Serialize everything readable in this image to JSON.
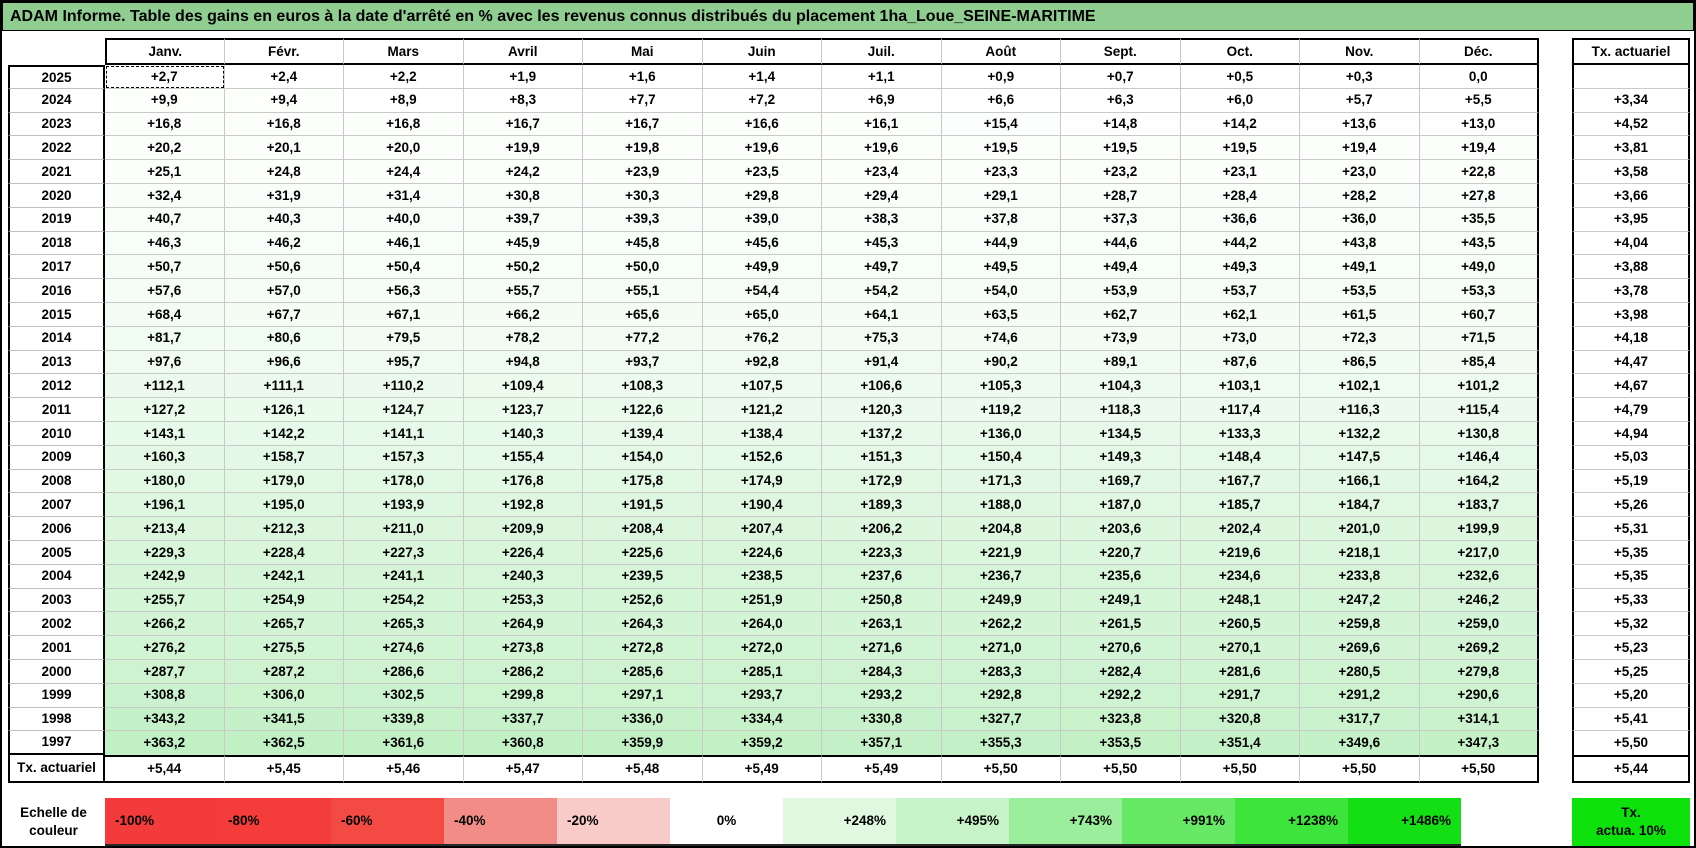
{
  "title": "ADAM Informe. Table des gains en euros à la date d'arrêté en % avec les revenus connus distribués du placement 1ha_Loue_SEINE-MARITIME",
  "table": {
    "month_headers": [
      "Janv.",
      "Févr.",
      "Mars",
      "Avril",
      "Mai",
      "Juin",
      "Juil.",
      "Août",
      "Sept.",
      "Oct.",
      "Nov.",
      "Déc."
    ],
    "right_header": "Tx. actuariel",
    "rows": [
      {
        "year": "2025",
        "values": [
          "+2,7",
          "+2,4",
          "+2,2",
          "+1,9",
          "+1,6",
          "+1,4",
          "+1,1",
          "+0,9",
          "+0,7",
          "+0,5",
          "+0,3",
          "0,0"
        ],
        "tx": ""
      },
      {
        "year": "2024",
        "values": [
          "+9,9",
          "+9,4",
          "+8,9",
          "+8,3",
          "+7,7",
          "+7,2",
          "+6,9",
          "+6,6",
          "+6,3",
          "+6,0",
          "+5,7",
          "+5,5"
        ],
        "tx": "+3,34"
      },
      {
        "year": "2023",
        "values": [
          "+16,8",
          "+16,8",
          "+16,8",
          "+16,7",
          "+16,7",
          "+16,6",
          "+16,1",
          "+15,4",
          "+14,8",
          "+14,2",
          "+13,6",
          "+13,0"
        ],
        "tx": "+4,52"
      },
      {
        "year": "2022",
        "values": [
          "+20,2",
          "+20,1",
          "+20,0",
          "+19,9",
          "+19,8",
          "+19,6",
          "+19,6",
          "+19,5",
          "+19,5",
          "+19,5",
          "+19,4",
          "+19,4"
        ],
        "tx": "+3,81"
      },
      {
        "year": "2021",
        "values": [
          "+25,1",
          "+24,8",
          "+24,4",
          "+24,2",
          "+23,9",
          "+23,5",
          "+23,4",
          "+23,3",
          "+23,2",
          "+23,1",
          "+23,0",
          "+22,8"
        ],
        "tx": "+3,58"
      },
      {
        "year": "2020",
        "values": [
          "+32,4",
          "+31,9",
          "+31,4",
          "+30,8",
          "+30,3",
          "+29,8",
          "+29,4",
          "+29,1",
          "+28,7",
          "+28,4",
          "+28,2",
          "+27,8"
        ],
        "tx": "+3,66"
      },
      {
        "year": "2019",
        "values": [
          "+40,7",
          "+40,3",
          "+40,0",
          "+39,7",
          "+39,3",
          "+39,0",
          "+38,3",
          "+37,8",
          "+37,3",
          "+36,6",
          "+36,0",
          "+35,5"
        ],
        "tx": "+3,95"
      },
      {
        "year": "2018",
        "values": [
          "+46,3",
          "+46,2",
          "+46,1",
          "+45,9",
          "+45,8",
          "+45,6",
          "+45,3",
          "+44,9",
          "+44,6",
          "+44,2",
          "+43,8",
          "+43,5"
        ],
        "tx": "+4,04"
      },
      {
        "year": "2017",
        "values": [
          "+50,7",
          "+50,6",
          "+50,4",
          "+50,2",
          "+50,0",
          "+49,9",
          "+49,7",
          "+49,5",
          "+49,4",
          "+49,3",
          "+49,1",
          "+49,0"
        ],
        "tx": "+3,88"
      },
      {
        "year": "2016",
        "values": [
          "+57,6",
          "+57,0",
          "+56,3",
          "+55,7",
          "+55,1",
          "+54,4",
          "+54,2",
          "+54,0",
          "+53,9",
          "+53,7",
          "+53,5",
          "+53,3"
        ],
        "tx": "+3,78"
      },
      {
        "year": "2015",
        "values": [
          "+68,4",
          "+67,7",
          "+67,1",
          "+66,2",
          "+65,6",
          "+65,0",
          "+64,1",
          "+63,5",
          "+62,7",
          "+62,1",
          "+61,5",
          "+60,7"
        ],
        "tx": "+3,98"
      },
      {
        "year": "2014",
        "values": [
          "+81,7",
          "+80,6",
          "+79,5",
          "+78,2",
          "+77,2",
          "+76,2",
          "+75,3",
          "+74,6",
          "+73,9",
          "+73,0",
          "+72,3",
          "+71,5"
        ],
        "tx": "+4,18"
      },
      {
        "year": "2013",
        "values": [
          "+97,6",
          "+96,6",
          "+95,7",
          "+94,8",
          "+93,7",
          "+92,8",
          "+91,4",
          "+90,2",
          "+89,1",
          "+87,6",
          "+86,5",
          "+85,4"
        ],
        "tx": "+4,47"
      },
      {
        "year": "2012",
        "values": [
          "+112,1",
          "+111,1",
          "+110,2",
          "+109,4",
          "+108,3",
          "+107,5",
          "+106,6",
          "+105,3",
          "+104,3",
          "+103,1",
          "+102,1",
          "+101,2"
        ],
        "tx": "+4,67"
      },
      {
        "year": "2011",
        "values": [
          "+127,2",
          "+126,1",
          "+124,7",
          "+123,7",
          "+122,6",
          "+121,2",
          "+120,3",
          "+119,2",
          "+118,3",
          "+117,4",
          "+116,3",
          "+115,4"
        ],
        "tx": "+4,79"
      },
      {
        "year": "2010",
        "values": [
          "+143,1",
          "+142,2",
          "+141,1",
          "+140,3",
          "+139,4",
          "+138,4",
          "+137,2",
          "+136,0",
          "+134,5",
          "+133,3",
          "+132,2",
          "+130,8"
        ],
        "tx": "+4,94"
      },
      {
        "year": "2009",
        "values": [
          "+160,3",
          "+158,7",
          "+157,3",
          "+155,4",
          "+154,0",
          "+152,6",
          "+151,3",
          "+150,4",
          "+149,3",
          "+148,4",
          "+147,5",
          "+146,4"
        ],
        "tx": "+5,03"
      },
      {
        "year": "2008",
        "values": [
          "+180,0",
          "+179,0",
          "+178,0",
          "+176,8",
          "+175,8",
          "+174,9",
          "+172,9",
          "+171,3",
          "+169,7",
          "+167,7",
          "+166,1",
          "+164,2"
        ],
        "tx": "+5,19"
      },
      {
        "year": "2007",
        "values": [
          "+196,1",
          "+195,0",
          "+193,9",
          "+192,8",
          "+191,5",
          "+190,4",
          "+189,3",
          "+188,0",
          "+187,0",
          "+185,7",
          "+184,7",
          "+183,7"
        ],
        "tx": "+5,26"
      },
      {
        "year": "2006",
        "values": [
          "+213,4",
          "+212,3",
          "+211,0",
          "+209,9",
          "+208,4",
          "+207,4",
          "+206,2",
          "+204,8",
          "+203,6",
          "+202,4",
          "+201,0",
          "+199,9"
        ],
        "tx": "+5,31"
      },
      {
        "year": "2005",
        "values": [
          "+229,3",
          "+228,4",
          "+227,3",
          "+226,4",
          "+225,6",
          "+224,6",
          "+223,3",
          "+221,9",
          "+220,7",
          "+219,6",
          "+218,1",
          "+217,0"
        ],
        "tx": "+5,35"
      },
      {
        "year": "2004",
        "values": [
          "+242,9",
          "+242,1",
          "+241,1",
          "+240,3",
          "+239,5",
          "+238,5",
          "+237,6",
          "+236,7",
          "+235,6",
          "+234,6",
          "+233,8",
          "+232,6"
        ],
        "tx": "+5,35"
      },
      {
        "year": "2003",
        "values": [
          "+255,7",
          "+254,9",
          "+254,2",
          "+253,3",
          "+252,6",
          "+251,9",
          "+250,8",
          "+249,9",
          "+249,1",
          "+248,1",
          "+247,2",
          "+246,2"
        ],
        "tx": "+5,33"
      },
      {
        "year": "2002",
        "values": [
          "+266,2",
          "+265,7",
          "+265,3",
          "+264,9",
          "+264,3",
          "+264,0",
          "+263,1",
          "+262,2",
          "+261,5",
          "+260,5",
          "+259,8",
          "+259,0"
        ],
        "tx": "+5,32"
      },
      {
        "year": "2001",
        "values": [
          "+276,2",
          "+275,5",
          "+274,6",
          "+273,8",
          "+272,8",
          "+272,0",
          "+271,6",
          "+271,0",
          "+270,6",
          "+270,1",
          "+269,6",
          "+269,2"
        ],
        "tx": "+5,23"
      },
      {
        "year": "2000",
        "values": [
          "+287,7",
          "+287,2",
          "+286,6",
          "+286,2",
          "+285,6",
          "+285,1",
          "+284,3",
          "+283,3",
          "+282,4",
          "+281,6",
          "+280,5",
          "+279,8"
        ],
        "tx": "+5,25"
      },
      {
        "year": "1999",
        "values": [
          "+308,8",
          "+306,0",
          "+302,5",
          "+299,8",
          "+297,1",
          "+293,7",
          "+293,2",
          "+292,8",
          "+292,2",
          "+291,7",
          "+291,2",
          "+290,6"
        ],
        "tx": "+5,20"
      },
      {
        "year": "1998",
        "values": [
          "+343,2",
          "+341,5",
          "+339,8",
          "+337,7",
          "+336,0",
          "+334,4",
          "+330,8",
          "+327,7",
          "+323,8",
          "+320,8",
          "+317,7",
          "+314,1"
        ],
        "tx": "+5,41"
      },
      {
        "year": "1997",
        "values": [
          "+363,2",
          "+362,5",
          "+361,6",
          "+360,8",
          "+359,9",
          "+359,2",
          "+357,1",
          "+355,3",
          "+353,5",
          "+351,4",
          "+349,6",
          "+347,3"
        ],
        "tx": "+5,50"
      }
    ],
    "footer": {
      "label": "Tx. actuariel",
      "values": [
        "+5,44",
        "+5,45",
        "+5,46",
        "+5,47",
        "+5,48",
        "+5,49",
        "+5,49",
        "+5,50",
        "+5,50",
        "+5,50",
        "+5,50",
        "+5,50"
      ],
      "tx": "+5,44"
    }
  },
  "legend": {
    "label": "Echelle de couleur",
    "cells": [
      {
        "label": "-100%",
        "color": "#f43b3b"
      },
      {
        "label": "-80%",
        "color": "#f43d3b"
      },
      {
        "label": "-60%",
        "color": "#f34b44"
      },
      {
        "label": "-40%",
        "color": "#f18c86"
      },
      {
        "label": "-20%",
        "color": "#f8cbc8"
      },
      {
        "label": "0%",
        "color": "#ffffff"
      },
      {
        "label": "+248%",
        "color": "#dff8df"
      },
      {
        "label": "+495%",
        "color": "#c6f3c7"
      },
      {
        "label": "+743%",
        "color": "#9bee9b"
      },
      {
        "label": "+991%",
        "color": "#67e966"
      },
      {
        "label": "+1238%",
        "color": "#3ce43b"
      },
      {
        "label": "+1486%",
        "color": "#14de14"
      }
    ],
    "tx_box": {
      "line1": "Tx.",
      "line2": "actua. 10%",
      "color": "#0de20d"
    },
    "scale_max_percent": 1486
  },
  "colors": {
    "title_bg": "#90cd90",
    "grid_line": "#c9c9c9",
    "border": "#000000"
  }
}
